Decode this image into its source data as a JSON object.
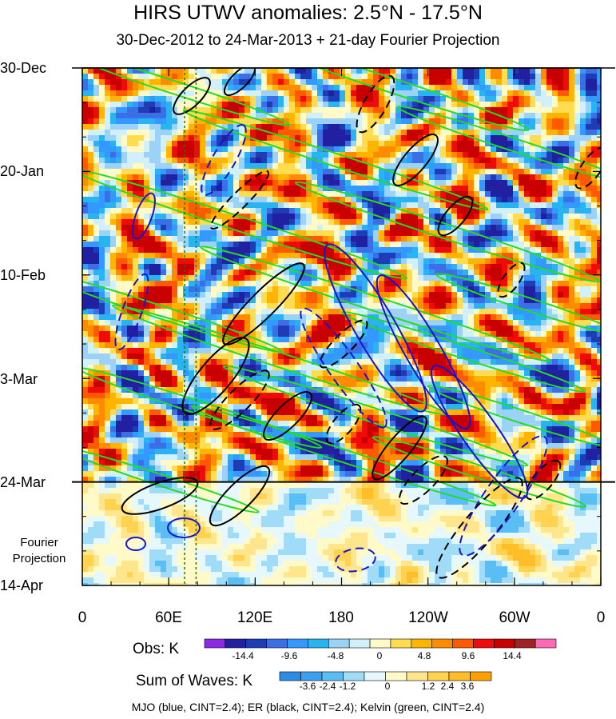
{
  "chart_data": {
    "type": "heatmap",
    "title": "HIRS UTWV anomalies: 2.5°N - 17.5°N",
    "subtitle": "30-Dec-2012 to 24-Mar-2013 + 21-day Fourier Projection",
    "xlabel": "",
    "ylabel": "",
    "x_tick_labels": [
      "0",
      "60E",
      "120E",
      "180",
      "120W",
      "60W",
      "0"
    ],
    "x_tick_values_deg_east": [
      0,
      60,
      120,
      180,
      240,
      300,
      360
    ],
    "y_tick_labels": [
      "30-Dec",
      "20-Jan",
      "10-Feb",
      "3-Mar",
      "24-Mar",
      "14-Apr"
    ],
    "y_tick_values_days": [
      0,
      21,
      42,
      63,
      84,
      105
    ],
    "fourier_label": [
      "Fourier",
      "Projection"
    ],
    "projection_start": "24-Mar",
    "obs_colorbar": {
      "label": "Obs: K",
      "tick_labels": [
        "-14.4",
        "-9.6",
        "-4.8",
        "0",
        "4.8",
        "9.6",
        "14.4"
      ],
      "levels": [
        -14.4,
        -9.6,
        -4.8,
        0,
        4.8,
        9.6,
        14.4
      ],
      "colors": [
        "#8a2be2",
        "#2020a0",
        "#1e3cb4",
        "#3c6ee6",
        "#3399ff",
        "#28b4f0",
        "#9bd2f5",
        "#d2f0fa",
        "#fffac8",
        "#ffdc50",
        "#ffb400",
        "#ff8c00",
        "#ff5a00",
        "#f00a0a",
        "#c80000",
        "#a02323",
        "#ff69b4"
      ]
    },
    "waves_colorbar": {
      "label": "Sum of Waves: K",
      "tick_labels": [
        "-3.6",
        "-2.4",
        "-1.2",
        "0",
        "1.2",
        "2.4",
        "3.6"
      ],
      "levels": [
        -3.6,
        -2.4,
        -1.2,
        0,
        1.2,
        2.4,
        3.6
      ],
      "colors": [
        "#2c8ce6",
        "#3ca0f0",
        "#5abef5",
        "#a0dcf8",
        "#e6f8fc",
        "#fffac8",
        "#ffe68c",
        "#ffd250",
        "#ffbe28",
        "#ffa000"
      ]
    },
    "contour_series": [
      {
        "name": "MJO",
        "color": "#1414d2",
        "cint": 2.4
      },
      {
        "name": "ER",
        "color": "#000000",
        "cint": 2.4
      },
      {
        "name": "Kelvin",
        "color": "#22dd22",
        "cint": 2.4
      }
    ],
    "reference_meridians_deg_east": [
      71,
      79
    ],
    "footnote": "MJO (blue, CINT=2.4); ER (black, CINT=2.4); Kelvin (green, CINT=2.4)"
  }
}
